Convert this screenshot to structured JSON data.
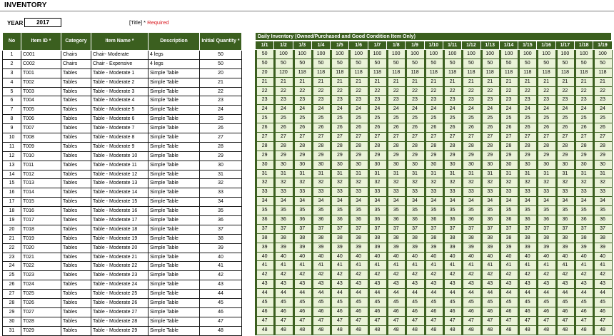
{
  "title": "INVENTORY",
  "year_label": "YEAR",
  "year_value": "2017",
  "required_note": {
    "prefix": "[Title] *",
    "text": "Required"
  },
  "columns": {
    "no": "No",
    "item_id": "Item ID *",
    "category": "Category",
    "item_name": "Item Name *",
    "description": "Description",
    "initial_qty": "Initial Quantity *"
  },
  "daily_header": "Daily Inventory (Owned/Purchased and Good Condition Item Only)",
  "dates": [
    "1/1",
    "1/2",
    "1/3",
    "1/4",
    "1/5",
    "1/6",
    "1/7",
    "1/8",
    "1/9",
    "1/10",
    "1/11",
    "1/12",
    "1/13",
    "1/14",
    "1/15",
    "1/16",
    "1/17",
    "1/18",
    "1/19"
  ],
  "rows": [
    {
      "no": "1",
      "id": "C001",
      "category": "Chairs",
      "name": "Chair- Moderate",
      "desc": "4 legs",
      "qty": "50",
      "daily": "50",
      "d": [
        "100",
        "100",
        "100",
        "100",
        "100",
        "100",
        "100",
        "100",
        "100",
        "100",
        "100",
        "100",
        "100",
        "100",
        "100",
        "100",
        "100",
        "100"
      ]
    },
    {
      "no": "2",
      "id": "C002",
      "category": "Chairs",
      "name": "Chair - Expensive",
      "desc": "4 legs",
      "qty": "50",
      "daily": "50",
      "d": [
        "50",
        "50",
        "50",
        "50",
        "50",
        "50",
        "50",
        "50",
        "50",
        "50",
        "50",
        "50",
        "50",
        "50",
        "50",
        "50",
        "50",
        "50"
      ]
    },
    {
      "no": "3",
      "id": "T001",
      "category": "Tables",
      "name": "Table - Moderate 1",
      "desc": "Simple Table",
      "qty": "20",
      "daily": "20",
      "d": [
        "120",
        "118",
        "118",
        "118",
        "118",
        "118",
        "118",
        "118",
        "118",
        "118",
        "118",
        "118",
        "118",
        "118",
        "118",
        "118",
        "118",
        "118"
      ]
    },
    {
      "no": "4",
      "id": "T002",
      "category": "Tables",
      "name": "Table - Moderate 2",
      "desc": "Simple Table",
      "qty": "21",
      "daily": "21",
      "d": [
        "21",
        "21",
        "21",
        "21",
        "21",
        "21",
        "21",
        "21",
        "21",
        "21",
        "21",
        "21",
        "21",
        "21",
        "21",
        "21",
        "21",
        "21"
      ]
    },
    {
      "no": "5",
      "id": "T003",
      "category": "Tables",
      "name": "Table - Moderate 3",
      "desc": "Simple Table",
      "qty": "22",
      "daily": "22",
      "d": [
        "22",
        "22",
        "22",
        "22",
        "22",
        "22",
        "22",
        "22",
        "22",
        "22",
        "22",
        "22",
        "22",
        "22",
        "22",
        "22",
        "22",
        "22"
      ]
    },
    {
      "no": "6",
      "id": "T004",
      "category": "Tables",
      "name": "Table - Moderate 4",
      "desc": "Simple Table",
      "qty": "23",
      "daily": "23",
      "d": [
        "23",
        "23",
        "23",
        "23",
        "23",
        "23",
        "23",
        "23",
        "23",
        "23",
        "23",
        "23",
        "23",
        "23",
        "23",
        "23",
        "23",
        "23"
      ]
    },
    {
      "no": "7",
      "id": "T005",
      "category": "Tables",
      "name": "Table - Moderate 5",
      "desc": "Simple Table",
      "qty": "24",
      "daily": "24",
      "d": [
        "24",
        "24",
        "24",
        "24",
        "24",
        "24",
        "24",
        "24",
        "24",
        "24",
        "24",
        "24",
        "24",
        "24",
        "24",
        "24",
        "24",
        "24"
      ]
    },
    {
      "no": "8",
      "id": "T006",
      "category": "Tables",
      "name": "Table - Moderate 6",
      "desc": "Simple Table",
      "qty": "25",
      "daily": "25",
      "d": [
        "25",
        "25",
        "25",
        "25",
        "25",
        "25",
        "25",
        "25",
        "25",
        "25",
        "25",
        "25",
        "25",
        "25",
        "25",
        "25",
        "25",
        "25"
      ]
    },
    {
      "no": "9",
      "id": "T007",
      "category": "Tables",
      "name": "Table - Moderate 7",
      "desc": "Simple Table",
      "qty": "26",
      "daily": "26",
      "d": [
        "26",
        "26",
        "26",
        "26",
        "26",
        "26",
        "26",
        "26",
        "26",
        "26",
        "26",
        "26",
        "26",
        "26",
        "26",
        "26",
        "26",
        "26"
      ]
    },
    {
      "no": "10",
      "id": "T008",
      "category": "Tables",
      "name": "Table - Moderate 8",
      "desc": "Simple Table",
      "qty": "27",
      "daily": "27",
      "d": [
        "27",
        "27",
        "27",
        "27",
        "27",
        "27",
        "27",
        "27",
        "27",
        "27",
        "27",
        "27",
        "27",
        "27",
        "27",
        "27",
        "27",
        "27"
      ]
    },
    {
      "no": "11",
      "id": "T009",
      "category": "Tables",
      "name": "Table - Moderate 9",
      "desc": "Simple Table",
      "qty": "28",
      "daily": "28",
      "d": [
        "28",
        "28",
        "28",
        "28",
        "28",
        "28",
        "28",
        "28",
        "28",
        "28",
        "28",
        "28",
        "28",
        "28",
        "28",
        "28",
        "28",
        "28"
      ]
    },
    {
      "no": "12",
      "id": "T010",
      "category": "Tables",
      "name": "Table - Moderate 10",
      "desc": "Simple Table",
      "qty": "29",
      "daily": "29",
      "d": [
        "29",
        "29",
        "29",
        "29",
        "29",
        "29",
        "29",
        "29",
        "29",
        "29",
        "29",
        "29",
        "29",
        "29",
        "29",
        "29",
        "29",
        "29"
      ]
    },
    {
      "no": "13",
      "id": "T011",
      "category": "Tables",
      "name": "Table - Moderate 11",
      "desc": "Simple Table",
      "qty": "30",
      "daily": "30",
      "d": [
        "30",
        "30",
        "30",
        "30",
        "30",
        "30",
        "30",
        "30",
        "30",
        "30",
        "30",
        "30",
        "30",
        "30",
        "30",
        "30",
        "30",
        "30"
      ]
    },
    {
      "no": "14",
      "id": "T012",
      "category": "Tables",
      "name": "Table - Moderate 12",
      "desc": "Simple Table",
      "qty": "31",
      "daily": "31",
      "d": [
        "31",
        "31",
        "31",
        "31",
        "31",
        "31",
        "31",
        "31",
        "31",
        "31",
        "31",
        "31",
        "31",
        "31",
        "31",
        "31",
        "31",
        "31"
      ]
    },
    {
      "no": "15",
      "id": "T013",
      "category": "Tables",
      "name": "Table - Moderate 13",
      "desc": "Simple Table",
      "qty": "32",
      "daily": "32",
      "d": [
        "32",
        "32",
        "32",
        "32",
        "32",
        "32",
        "32",
        "32",
        "32",
        "32",
        "32",
        "32",
        "32",
        "32",
        "32",
        "32",
        "32",
        "32"
      ]
    },
    {
      "no": "16",
      "id": "T014",
      "category": "Tables",
      "name": "Table - Moderate 14",
      "desc": "Simple Table",
      "qty": "33",
      "daily": "33",
      "d": [
        "33",
        "33",
        "33",
        "33",
        "33",
        "33",
        "33",
        "33",
        "33",
        "33",
        "33",
        "33",
        "33",
        "33",
        "33",
        "33",
        "33",
        "33"
      ]
    },
    {
      "no": "17",
      "id": "T015",
      "category": "Tables",
      "name": "Table - Moderate 15",
      "desc": "Simple Table",
      "qty": "34",
      "daily": "34",
      "d": [
        "34",
        "34",
        "34",
        "34",
        "34",
        "34",
        "34",
        "34",
        "34",
        "34",
        "34",
        "34",
        "34",
        "34",
        "34",
        "34",
        "34",
        "34"
      ]
    },
    {
      "no": "18",
      "id": "T016",
      "category": "Tables",
      "name": "Table - Moderate 16",
      "desc": "Simple Table",
      "qty": "35",
      "daily": "35",
      "d": [
        "35",
        "35",
        "35",
        "35",
        "35",
        "35",
        "35",
        "35",
        "35",
        "35",
        "35",
        "35",
        "35",
        "35",
        "35",
        "35",
        "35",
        "35"
      ]
    },
    {
      "no": "19",
      "id": "T017",
      "category": "Tables",
      "name": "Table - Moderate 17",
      "desc": "Simple Table",
      "qty": "36",
      "daily": "36",
      "d": [
        "36",
        "36",
        "36",
        "36",
        "36",
        "36",
        "36",
        "36",
        "36",
        "36",
        "36",
        "36",
        "36",
        "36",
        "36",
        "36",
        "36",
        "36"
      ]
    },
    {
      "no": "20",
      "id": "T018",
      "category": "Tables",
      "name": "Table - Moderate 18",
      "desc": "Simple Table",
      "qty": "37",
      "daily": "37",
      "d": [
        "37",
        "37",
        "37",
        "37",
        "37",
        "37",
        "37",
        "37",
        "37",
        "37",
        "37",
        "37",
        "37",
        "37",
        "37",
        "37",
        "37",
        "37"
      ]
    },
    {
      "no": "21",
      "id": "T019",
      "category": "Tables",
      "name": "Table - Moderate 19",
      "desc": "Simple Table",
      "qty": "38",
      "daily": "38",
      "d": [
        "38",
        "38",
        "38",
        "38",
        "38",
        "38",
        "38",
        "38",
        "38",
        "38",
        "38",
        "38",
        "38",
        "38",
        "38",
        "38",
        "38",
        "38"
      ]
    },
    {
      "no": "22",
      "id": "T020",
      "category": "Tables",
      "name": "Table - Moderate 20",
      "desc": "Simple Table",
      "qty": "39",
      "daily": "39",
      "d": [
        "39",
        "39",
        "39",
        "39",
        "39",
        "39",
        "39",
        "39",
        "39",
        "39",
        "39",
        "39",
        "39",
        "39",
        "39",
        "39",
        "39",
        "39"
      ]
    },
    {
      "no": "23",
      "id": "T021",
      "category": "Tables",
      "name": "Table - Moderate 21",
      "desc": "Simple Table",
      "qty": "40",
      "daily": "40",
      "d": [
        "40",
        "40",
        "40",
        "40",
        "40",
        "40",
        "40",
        "40",
        "40",
        "40",
        "40",
        "40",
        "40",
        "40",
        "40",
        "40",
        "40",
        "40"
      ]
    },
    {
      "no": "24",
      "id": "T022",
      "category": "Tables",
      "name": "Table - Moderate 22",
      "desc": "Simple Table",
      "qty": "41",
      "daily": "41",
      "d": [
        "41",
        "41",
        "41",
        "41",
        "41",
        "41",
        "41",
        "41",
        "41",
        "41",
        "41",
        "41",
        "41",
        "41",
        "41",
        "41",
        "41",
        "41"
      ]
    },
    {
      "no": "25",
      "id": "T023",
      "category": "Tables",
      "name": "Table - Moderate 23",
      "desc": "Simple Table",
      "qty": "42",
      "daily": "42",
      "d": [
        "42",
        "42",
        "42",
        "42",
        "42",
        "42",
        "42",
        "42",
        "42",
        "42",
        "42",
        "42",
        "42",
        "42",
        "42",
        "42",
        "42",
        "42"
      ]
    },
    {
      "no": "26",
      "id": "T024",
      "category": "Tables",
      "name": "Table - Moderate 24",
      "desc": "Simple Table",
      "qty": "43",
      "daily": "43",
      "d": [
        "43",
        "43",
        "43",
        "43",
        "43",
        "43",
        "43",
        "43",
        "43",
        "43",
        "43",
        "43",
        "43",
        "43",
        "43",
        "43",
        "43",
        "43"
      ]
    },
    {
      "no": "27",
      "id": "T025",
      "category": "Tables",
      "name": "Table - Moderate 25",
      "desc": "Simple Table",
      "qty": "44",
      "daily": "44",
      "d": [
        "44",
        "44",
        "44",
        "44",
        "44",
        "44",
        "44",
        "44",
        "44",
        "44",
        "44",
        "44",
        "44",
        "44",
        "44",
        "44",
        "44",
        "44"
      ]
    },
    {
      "no": "28",
      "id": "T026",
      "category": "Tables",
      "name": "Table - Moderate 26",
      "desc": "Simple Table",
      "qty": "45",
      "daily": "45",
      "d": [
        "45",
        "45",
        "45",
        "45",
        "45",
        "45",
        "45",
        "45",
        "45",
        "45",
        "45",
        "45",
        "45",
        "45",
        "45",
        "45",
        "45",
        "45"
      ]
    },
    {
      "no": "29",
      "id": "T027",
      "category": "Tables",
      "name": "Table - Moderate 27",
      "desc": "Simple Table",
      "qty": "46",
      "daily": "46",
      "d": [
        "46",
        "46",
        "46",
        "46",
        "46",
        "46",
        "46",
        "46",
        "46",
        "46",
        "46",
        "46",
        "46",
        "46",
        "46",
        "46",
        "46",
        "46"
      ]
    },
    {
      "no": "30",
      "id": "T028",
      "category": "Tables",
      "name": "Table - Moderate 28",
      "desc": "Simple Table",
      "qty": "47",
      "daily": "47",
      "d": [
        "47",
        "47",
        "47",
        "47",
        "47",
        "47",
        "47",
        "47",
        "47",
        "47",
        "47",
        "47",
        "47",
        "47",
        "47",
        "47",
        "47",
        "47"
      ]
    },
    {
      "no": "31",
      "id": "T029",
      "category": "Tables",
      "name": "Table - Moderate 29",
      "desc": "Simple Table",
      "qty": "48",
      "daily": "48",
      "d": [
        "48",
        "48",
        "48",
        "48",
        "48",
        "48",
        "48",
        "48",
        "48",
        "48",
        "48",
        "48",
        "48",
        "48",
        "48",
        "48",
        "48",
        "48"
      ]
    }
  ],
  "colors": {
    "header_green": "#3b5f1f",
    "cell_fill": "#eaf3d8",
    "required_red": "#d9181f"
  }
}
